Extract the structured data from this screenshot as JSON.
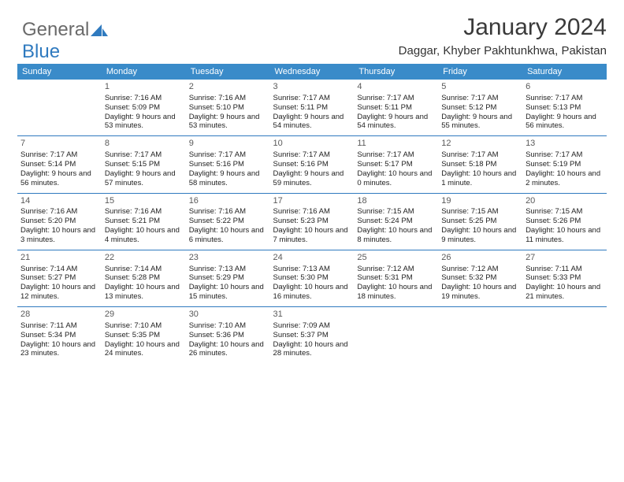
{
  "brand": {
    "part1": "General",
    "part2": "Blue",
    "color_gray": "#6a6a6a",
    "color_blue": "#2f7abf"
  },
  "title": "January 2024",
  "location": "Daggar, Khyber Pakhtunkhwa, Pakistan",
  "header_bg": "#3a8bc9",
  "dow": [
    "Sunday",
    "Monday",
    "Tuesday",
    "Wednesday",
    "Thursday",
    "Friday",
    "Saturday"
  ],
  "weeks": [
    [
      null,
      {
        "n": "1",
        "sr": "7:16 AM",
        "ss": "5:09 PM",
        "dl": "9 hours and 53 minutes."
      },
      {
        "n": "2",
        "sr": "7:16 AM",
        "ss": "5:10 PM",
        "dl": "9 hours and 53 minutes."
      },
      {
        "n": "3",
        "sr": "7:17 AM",
        "ss": "5:11 PM",
        "dl": "9 hours and 54 minutes."
      },
      {
        "n": "4",
        "sr": "7:17 AM",
        "ss": "5:11 PM",
        "dl": "9 hours and 54 minutes."
      },
      {
        "n": "5",
        "sr": "7:17 AM",
        "ss": "5:12 PM",
        "dl": "9 hours and 55 minutes."
      },
      {
        "n": "6",
        "sr": "7:17 AM",
        "ss": "5:13 PM",
        "dl": "9 hours and 56 minutes."
      }
    ],
    [
      {
        "n": "7",
        "sr": "7:17 AM",
        "ss": "5:14 PM",
        "dl": "9 hours and 56 minutes."
      },
      {
        "n": "8",
        "sr": "7:17 AM",
        "ss": "5:15 PM",
        "dl": "9 hours and 57 minutes."
      },
      {
        "n": "9",
        "sr": "7:17 AM",
        "ss": "5:16 PM",
        "dl": "9 hours and 58 minutes."
      },
      {
        "n": "10",
        "sr": "7:17 AM",
        "ss": "5:16 PM",
        "dl": "9 hours and 59 minutes."
      },
      {
        "n": "11",
        "sr": "7:17 AM",
        "ss": "5:17 PM",
        "dl": "10 hours and 0 minutes."
      },
      {
        "n": "12",
        "sr": "7:17 AM",
        "ss": "5:18 PM",
        "dl": "10 hours and 1 minute."
      },
      {
        "n": "13",
        "sr": "7:17 AM",
        "ss": "5:19 PM",
        "dl": "10 hours and 2 minutes."
      }
    ],
    [
      {
        "n": "14",
        "sr": "7:16 AM",
        "ss": "5:20 PM",
        "dl": "10 hours and 3 minutes."
      },
      {
        "n": "15",
        "sr": "7:16 AM",
        "ss": "5:21 PM",
        "dl": "10 hours and 4 minutes."
      },
      {
        "n": "16",
        "sr": "7:16 AM",
        "ss": "5:22 PM",
        "dl": "10 hours and 6 minutes."
      },
      {
        "n": "17",
        "sr": "7:16 AM",
        "ss": "5:23 PM",
        "dl": "10 hours and 7 minutes."
      },
      {
        "n": "18",
        "sr": "7:15 AM",
        "ss": "5:24 PM",
        "dl": "10 hours and 8 minutes."
      },
      {
        "n": "19",
        "sr": "7:15 AM",
        "ss": "5:25 PM",
        "dl": "10 hours and 9 minutes."
      },
      {
        "n": "20",
        "sr": "7:15 AM",
        "ss": "5:26 PM",
        "dl": "10 hours and 11 minutes."
      }
    ],
    [
      {
        "n": "21",
        "sr": "7:14 AM",
        "ss": "5:27 PM",
        "dl": "10 hours and 12 minutes."
      },
      {
        "n": "22",
        "sr": "7:14 AM",
        "ss": "5:28 PM",
        "dl": "10 hours and 13 minutes."
      },
      {
        "n": "23",
        "sr": "7:13 AM",
        "ss": "5:29 PM",
        "dl": "10 hours and 15 minutes."
      },
      {
        "n": "24",
        "sr": "7:13 AM",
        "ss": "5:30 PM",
        "dl": "10 hours and 16 minutes."
      },
      {
        "n": "25",
        "sr": "7:12 AM",
        "ss": "5:31 PM",
        "dl": "10 hours and 18 minutes."
      },
      {
        "n": "26",
        "sr": "7:12 AM",
        "ss": "5:32 PM",
        "dl": "10 hours and 19 minutes."
      },
      {
        "n": "27",
        "sr": "7:11 AM",
        "ss": "5:33 PM",
        "dl": "10 hours and 21 minutes."
      }
    ],
    [
      {
        "n": "28",
        "sr": "7:11 AM",
        "ss": "5:34 PM",
        "dl": "10 hours and 23 minutes."
      },
      {
        "n": "29",
        "sr": "7:10 AM",
        "ss": "5:35 PM",
        "dl": "10 hours and 24 minutes."
      },
      {
        "n": "30",
        "sr": "7:10 AM",
        "ss": "5:36 PM",
        "dl": "10 hours and 26 minutes."
      },
      {
        "n": "31",
        "sr": "7:09 AM",
        "ss": "5:37 PM",
        "dl": "10 hours and 28 minutes."
      },
      null,
      null,
      null
    ]
  ],
  "labels": {
    "sunrise": "Sunrise: ",
    "sunset": "Sunset: ",
    "daylight": "Daylight: "
  }
}
